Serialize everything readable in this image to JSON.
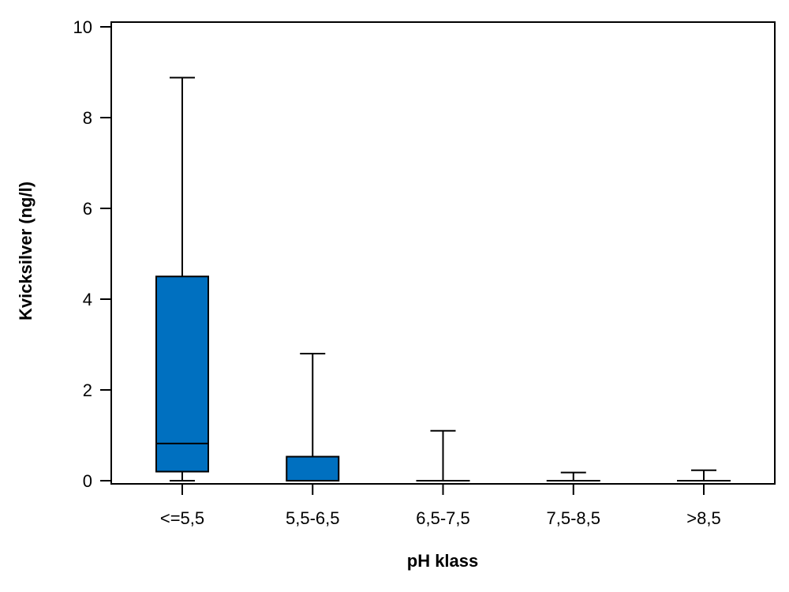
{
  "chart_data": {
    "type": "boxplot",
    "xlabel": "pH klass",
    "ylabel": "Kvicksilver (ng/l)",
    "categories": [
      "<=5,5",
      "5,5-6,5",
      "6,5-7,5",
      "7,5-8,5",
      ">8,5"
    ],
    "yticks": [
      "0",
      "2",
      "4",
      "6",
      "8",
      "10"
    ],
    "ylim": [
      0,
      10
    ],
    "grid": false,
    "box_color": "#0070C0",
    "boxes": [
      {
        "category": "<=5,5",
        "min": 0.0,
        "q1": 0.2,
        "median": 0.82,
        "q3": 4.5,
        "max": 8.88
      },
      {
        "category": "5,5-6,5",
        "min": 0.0,
        "q1": 0.0,
        "median": 0.0,
        "q3": 0.53,
        "max": 2.8
      },
      {
        "category": "6,5-7,5",
        "min": 0.0,
        "q1": 0.0,
        "median": 0.0,
        "q3": 0.0,
        "max": 1.1
      },
      {
        "category": "7,5-8,5",
        "min": 0.0,
        "q1": 0.0,
        "median": 0.0,
        "q3": 0.0,
        "max": 0.18
      },
      {
        "category": ">8,5",
        "min": 0.0,
        "q1": 0.0,
        "median": 0.0,
        "q3": 0.0,
        "max": 0.23
      }
    ]
  }
}
